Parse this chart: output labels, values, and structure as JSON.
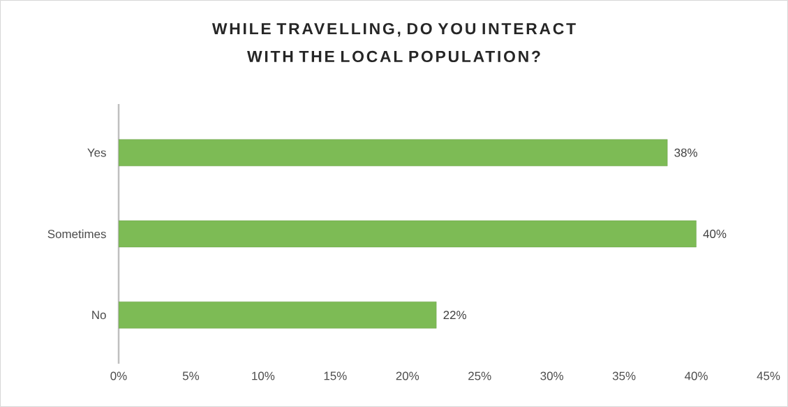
{
  "chart_data": {
    "type": "bar",
    "orientation": "horizontal",
    "title": "WHILE TRAVELLING, DO YOU INTERACT WITH THE LOCAL POPULATION?",
    "categories": [
      "Yes",
      "Sometimes",
      "No"
    ],
    "values": [
      38,
      40,
      22
    ],
    "value_labels": [
      "38%",
      "40%",
      "22%"
    ],
    "color": "#7dbb55",
    "xlim": [
      0,
      45
    ],
    "xticks": [
      {
        "value": 0,
        "label": "0%"
      },
      {
        "value": 5,
        "label": "5%"
      },
      {
        "value": 10,
        "label": "10%"
      },
      {
        "value": 15,
        "label": "15%"
      },
      {
        "value": 20,
        "label": "20%"
      },
      {
        "value": 25,
        "label": "25%"
      },
      {
        "value": 30,
        "label": "30%"
      },
      {
        "value": 35,
        "label": "35%"
      },
      {
        "value": 40,
        "label": "40%"
      },
      {
        "value": 45,
        "label": "45%"
      }
    ],
    "grid": false
  }
}
